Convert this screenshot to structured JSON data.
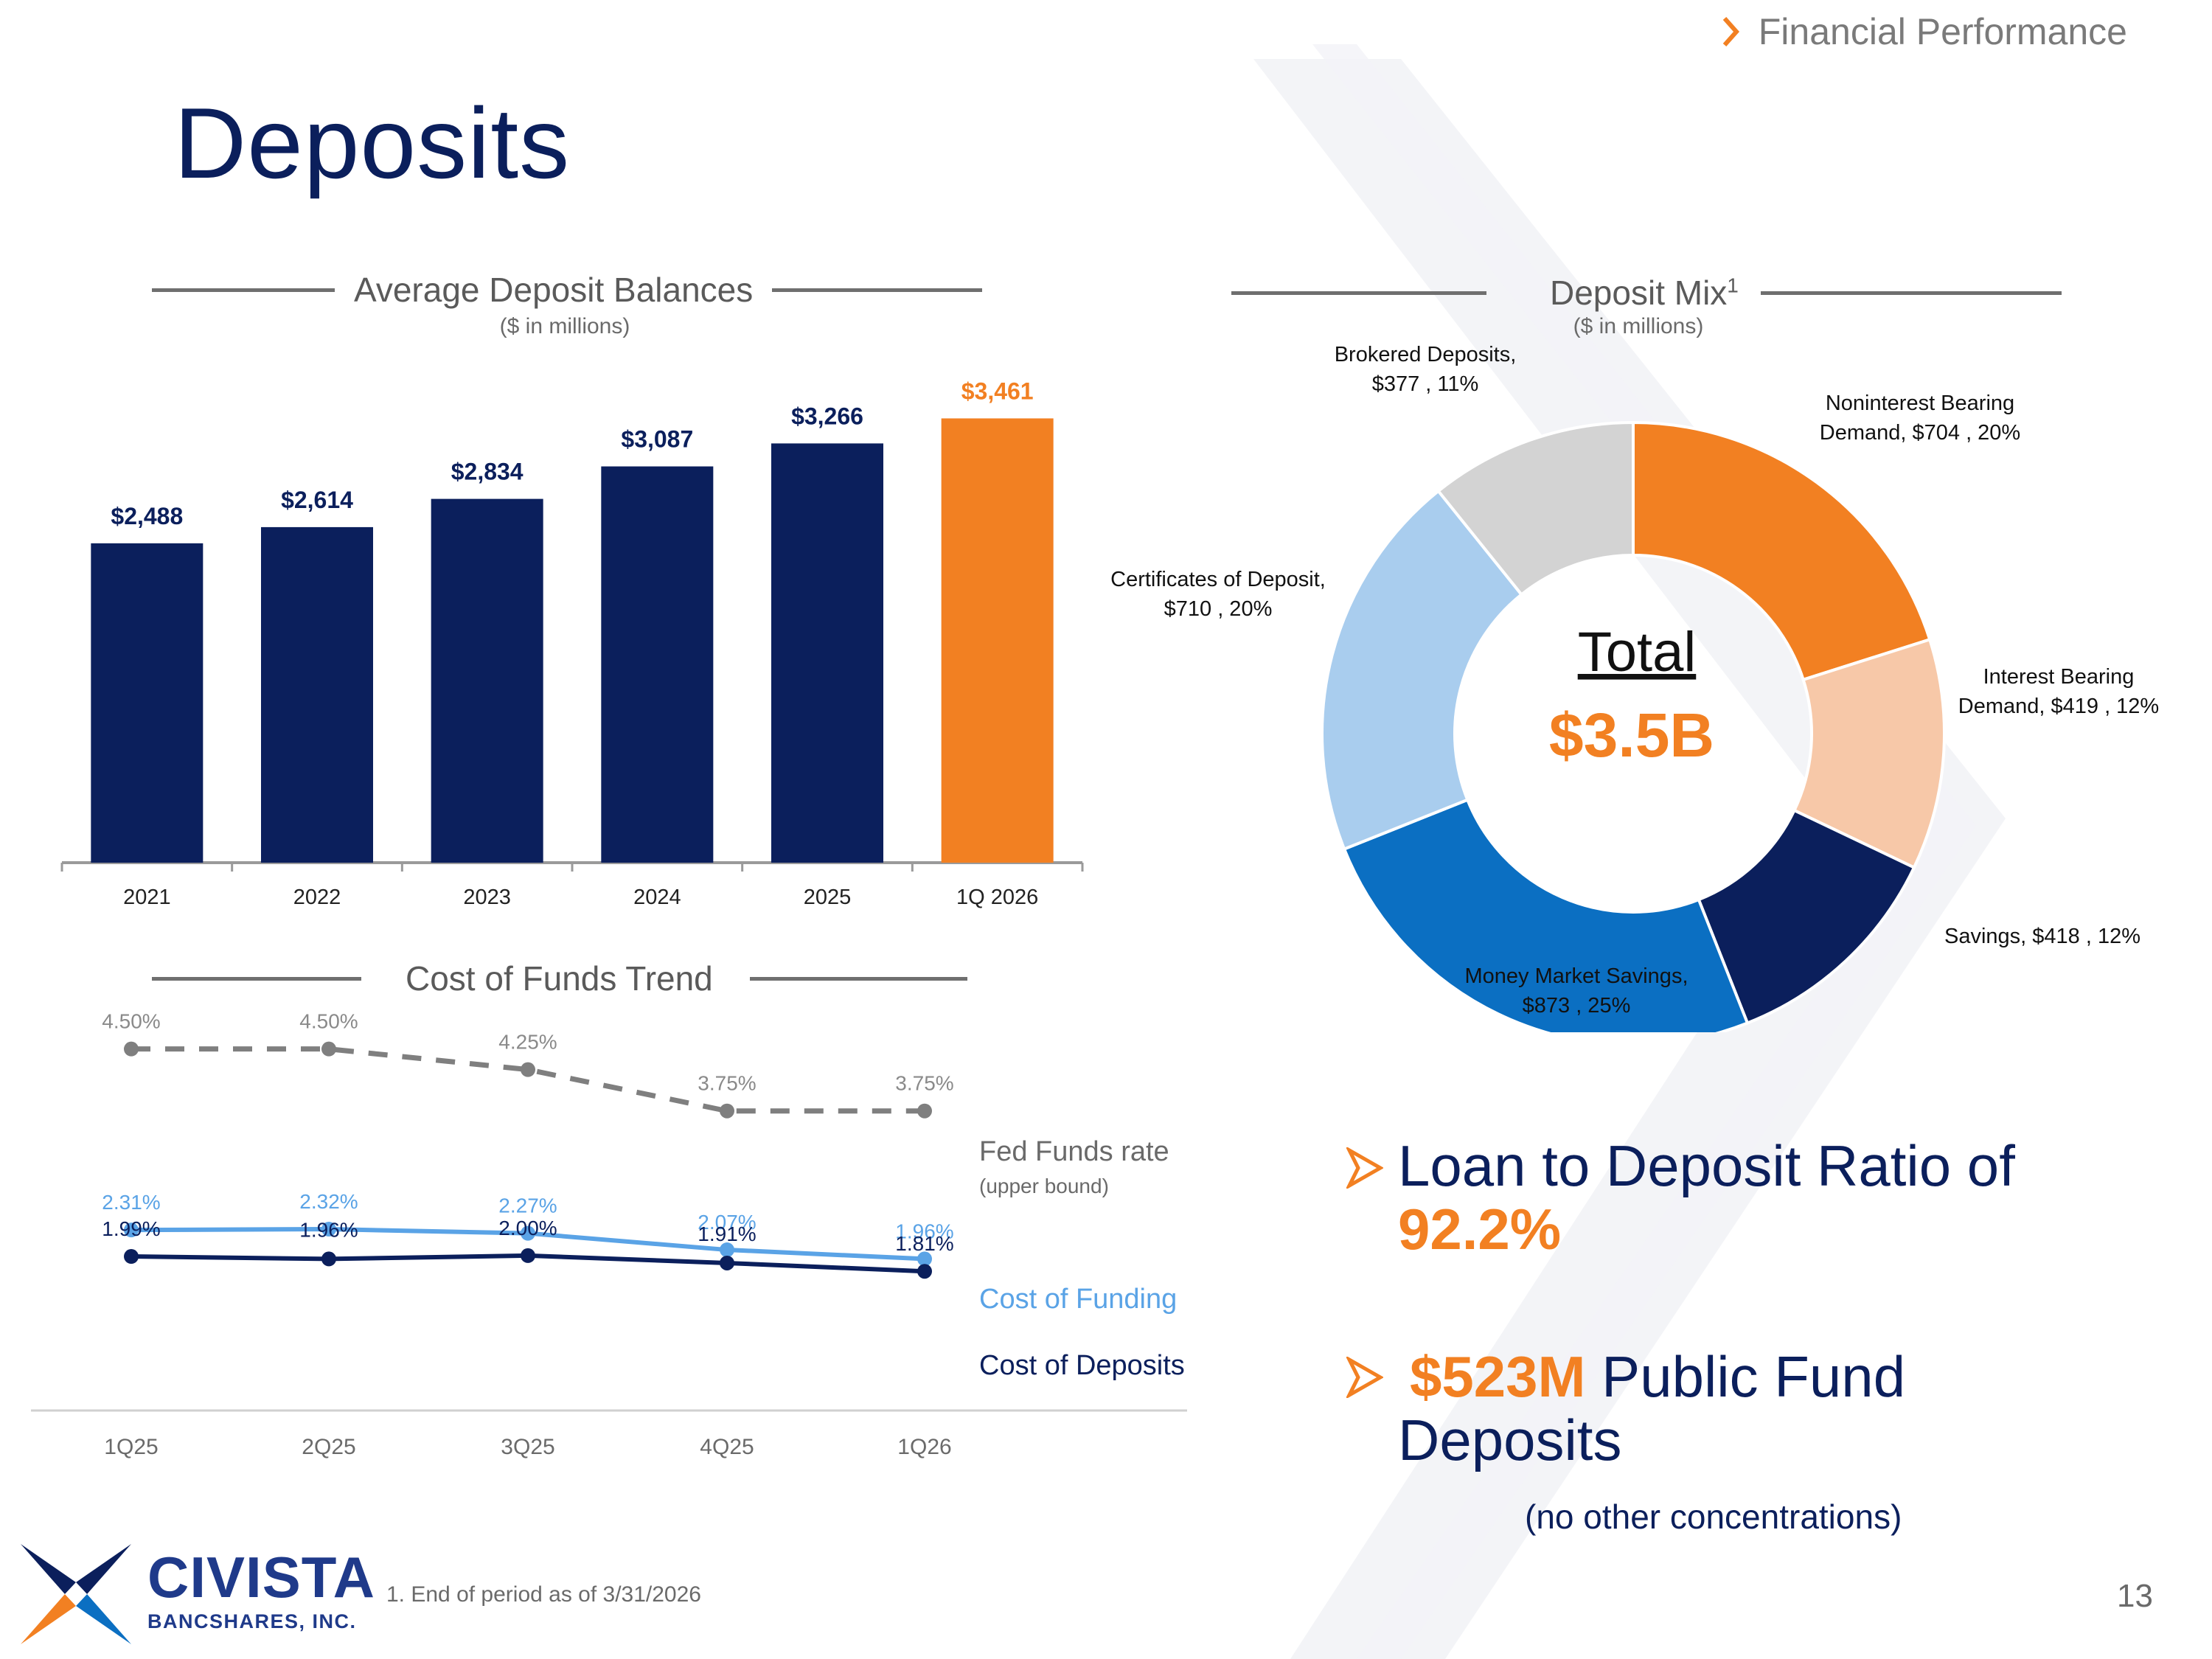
{
  "section_tag": "Financial Performance",
  "page_title": "Deposits",
  "colors": {
    "navy": "#0b1f5c",
    "orange": "#f28022",
    "light_blue": "#5aa3e6",
    "gray": "#7f7f7f"
  },
  "chart_data": [
    {
      "type": "bar",
      "title": "Average Deposit Balances",
      "subtitle": "($ in millions)",
      "categories": [
        "2021",
        "2022",
        "2023",
        "2024",
        "2025",
        "1Q 2026"
      ],
      "values": [
        2488,
        2614,
        2834,
        3087,
        3266,
        3461
      ],
      "data_labels": [
        "$2,488",
        "$2,614",
        "$2,834",
        "$3,087",
        "$3,266",
        "$3,461"
      ],
      "bar_colors": [
        "#0b1f5c",
        "#0b1f5c",
        "#0b1f5c",
        "#0b1f5c",
        "#0b1f5c",
        "#f28022"
      ],
      "ylim": [
        0,
        3500
      ],
      "grid": false
    },
    {
      "type": "pie",
      "title": "Deposit Mix",
      "title_superscript": "1",
      "subtitle": "($ in millions)",
      "center_label": "Total",
      "center_value": "$3.5B",
      "slices": [
        {
          "label": "Noninterest Bearing Demand",
          "value": 704,
          "percent": 20,
          "color": "#f28022",
          "text_lines": [
            "Noninterest Bearing",
            "Demand,  $704 , 20%"
          ]
        },
        {
          "label": "Interest Bearing Demand",
          "value": 419,
          "percent": 12,
          "color": "#f7c8a8",
          "text_lines": [
            "Interest Bearing",
            "Demand,  $419 , 12%"
          ]
        },
        {
          "label": "Savings",
          "value": 418,
          "percent": 12,
          "color": "#0b1f5c",
          "text_lines": [
            "Savings,  $418 , 12%"
          ]
        },
        {
          "label": "Money Market Savings",
          "value": 873,
          "percent": 25,
          "color": "#0b6fc2",
          "text_lines": [
            "Money Market Savings,",
            "$873 , 25%"
          ]
        },
        {
          "label": "Certificates of Deposit",
          "value": 710,
          "percent": 20,
          "color": "#a9cdee",
          "text_lines": [
            "Certificates of Deposit,",
            "$710 , 20%"
          ]
        },
        {
          "label": "Brokered Deposits",
          "value": 377,
          "percent": 11,
          "color": "#d3d3d3",
          "text_lines": [
            "Brokered Deposits,",
            "$377 , 11%"
          ]
        }
      ]
    },
    {
      "type": "line",
      "title": "Cost of Funds Trend",
      "categories": [
        "1Q25",
        "2Q25",
        "3Q25",
        "4Q25",
        "1Q26"
      ],
      "ylim": [
        1.5,
        4.7
      ],
      "series": [
        {
          "name": "Fed Funds rate",
          "name_note": "(upper bound)",
          "values": [
            4.5,
            4.5,
            4.25,
            3.75,
            3.75
          ],
          "labels": [
            "4.50%",
            "4.50%",
            "4.25%",
            "3.75%",
            "3.75%"
          ],
          "color": "#7f7f7f",
          "dashed": true
        },
        {
          "name": "Cost of Funding",
          "values": [
            2.31,
            2.32,
            2.27,
            2.07,
            1.96
          ],
          "labels": [
            "2.31%",
            "2.32%",
            "2.27%",
            "2.07%",
            "1.96%"
          ],
          "color": "#5aa3e6",
          "dashed": false
        },
        {
          "name": "Cost of Deposits",
          "values": [
            1.99,
            1.96,
            2.0,
            1.91,
            1.81
          ],
          "labels": [
            "1.99%",
            "1.96%",
            "2.00%",
            "1.91%",
            "1.81%"
          ],
          "color": "#0b1f5c",
          "dashed": false
        }
      ]
    }
  ],
  "callouts": {
    "ltd_prefix": "Loan to Deposit Ratio of",
    "ltd_value": "92.2%",
    "pf_value": "$523M",
    "pf_text_1": " Public Fund",
    "pf_text_2": "Deposits",
    "pf_note": "(no other concentrations)"
  },
  "footnote": "1. End of period as of 3/31/2026",
  "page_number": "13",
  "logo": {
    "name": "CIVISTA",
    "sub": "BANCSHARES, INC."
  }
}
